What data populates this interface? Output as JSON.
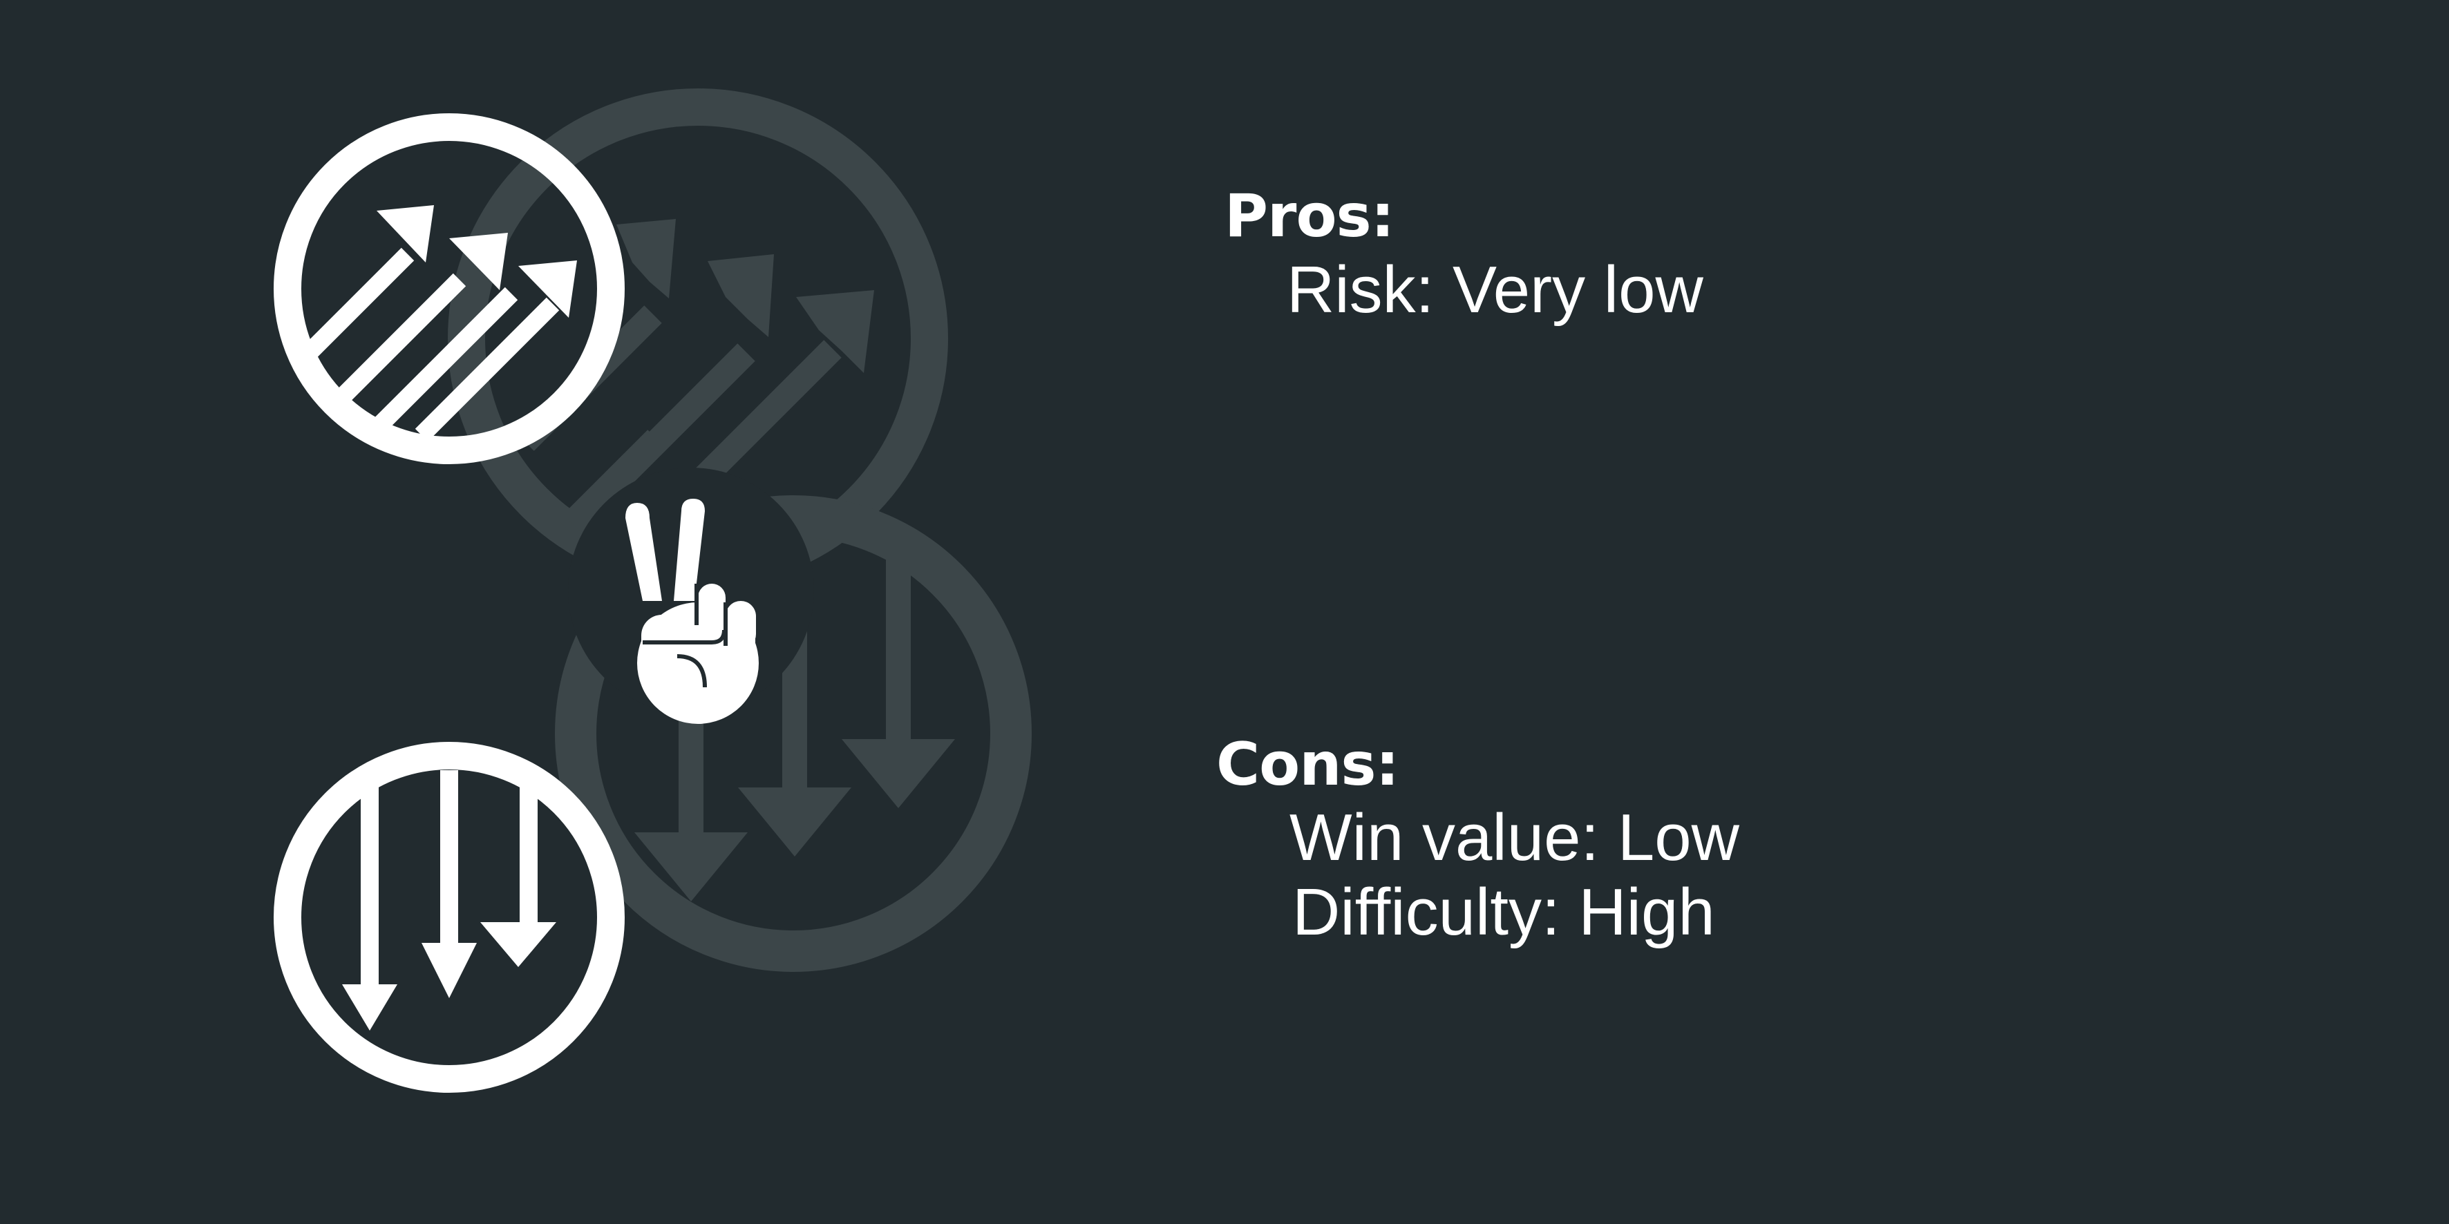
{
  "colors": {
    "background": "#222b2f",
    "foreground": "#ffffff",
    "faded": "#3c4649"
  },
  "icons": [
    "up-right-arrows-circle-icon",
    "down-arrows-circle-icon",
    "peace-hand-icon"
  ],
  "pros": {
    "heading": "Pros:",
    "items": [
      "Risk: Very low"
    ]
  },
  "cons": {
    "heading": "Cons:",
    "items": [
      "Win value: Low",
      "Difficulty: High"
    ]
  }
}
